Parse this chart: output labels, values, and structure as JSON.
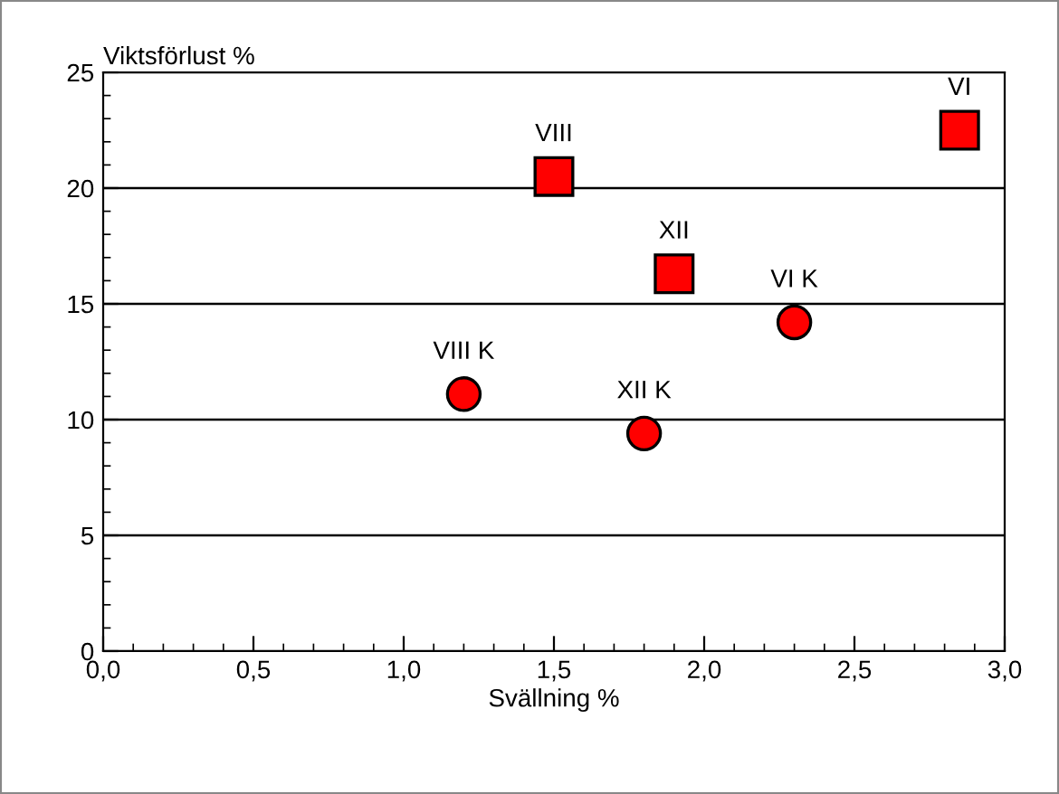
{
  "chart_data": {
    "type": "scatter",
    "xlabel": "Svällning %",
    "ylabel": "Viktsförlust %",
    "xlim": [
      0,
      3.0
    ],
    "ylim": [
      0,
      25
    ],
    "xticks": [
      {
        "value": 0,
        "label": "0,0"
      },
      {
        "value": 0.5,
        "label": "0,5"
      },
      {
        "value": 1.0,
        "label": "1,0"
      },
      {
        "value": 1.5,
        "label": "1,5"
      },
      {
        "value": 2.0,
        "label": "2,0"
      },
      {
        "value": 2.5,
        "label": "2,5"
      },
      {
        "value": 3.0,
        "label": "3,0"
      }
    ],
    "yticks": [
      0,
      5,
      10,
      15,
      20,
      25
    ],
    "grid": "y",
    "legend": false,
    "series": [
      {
        "marker": "square",
        "color": "#ff0000",
        "x": [
          1.5,
          1.9,
          2.85
        ],
        "values": [
          20.5,
          16.3,
          22.5
        ]
      },
      {
        "marker": "circle",
        "color": "#ff0000",
        "x": [
          1.2,
          1.8,
          2.3
        ],
        "values": [
          11.1,
          9.4,
          14.2
        ]
      }
    ],
    "annotations": [
      {
        "text": "VIII",
        "x": 1.5,
        "y": 20.5
      },
      {
        "text": "XII",
        "x": 1.9,
        "y": 16.3
      },
      {
        "text": "VI",
        "x": 2.85,
        "y": 22.5
      },
      {
        "text": "VIII K",
        "x": 1.2,
        "y": 11.1
      },
      {
        "text": "XII K",
        "x": 1.8,
        "y": 9.4
      },
      {
        "text": "VI K",
        "x": 2.3,
        "y": 14.2
      }
    ]
  }
}
